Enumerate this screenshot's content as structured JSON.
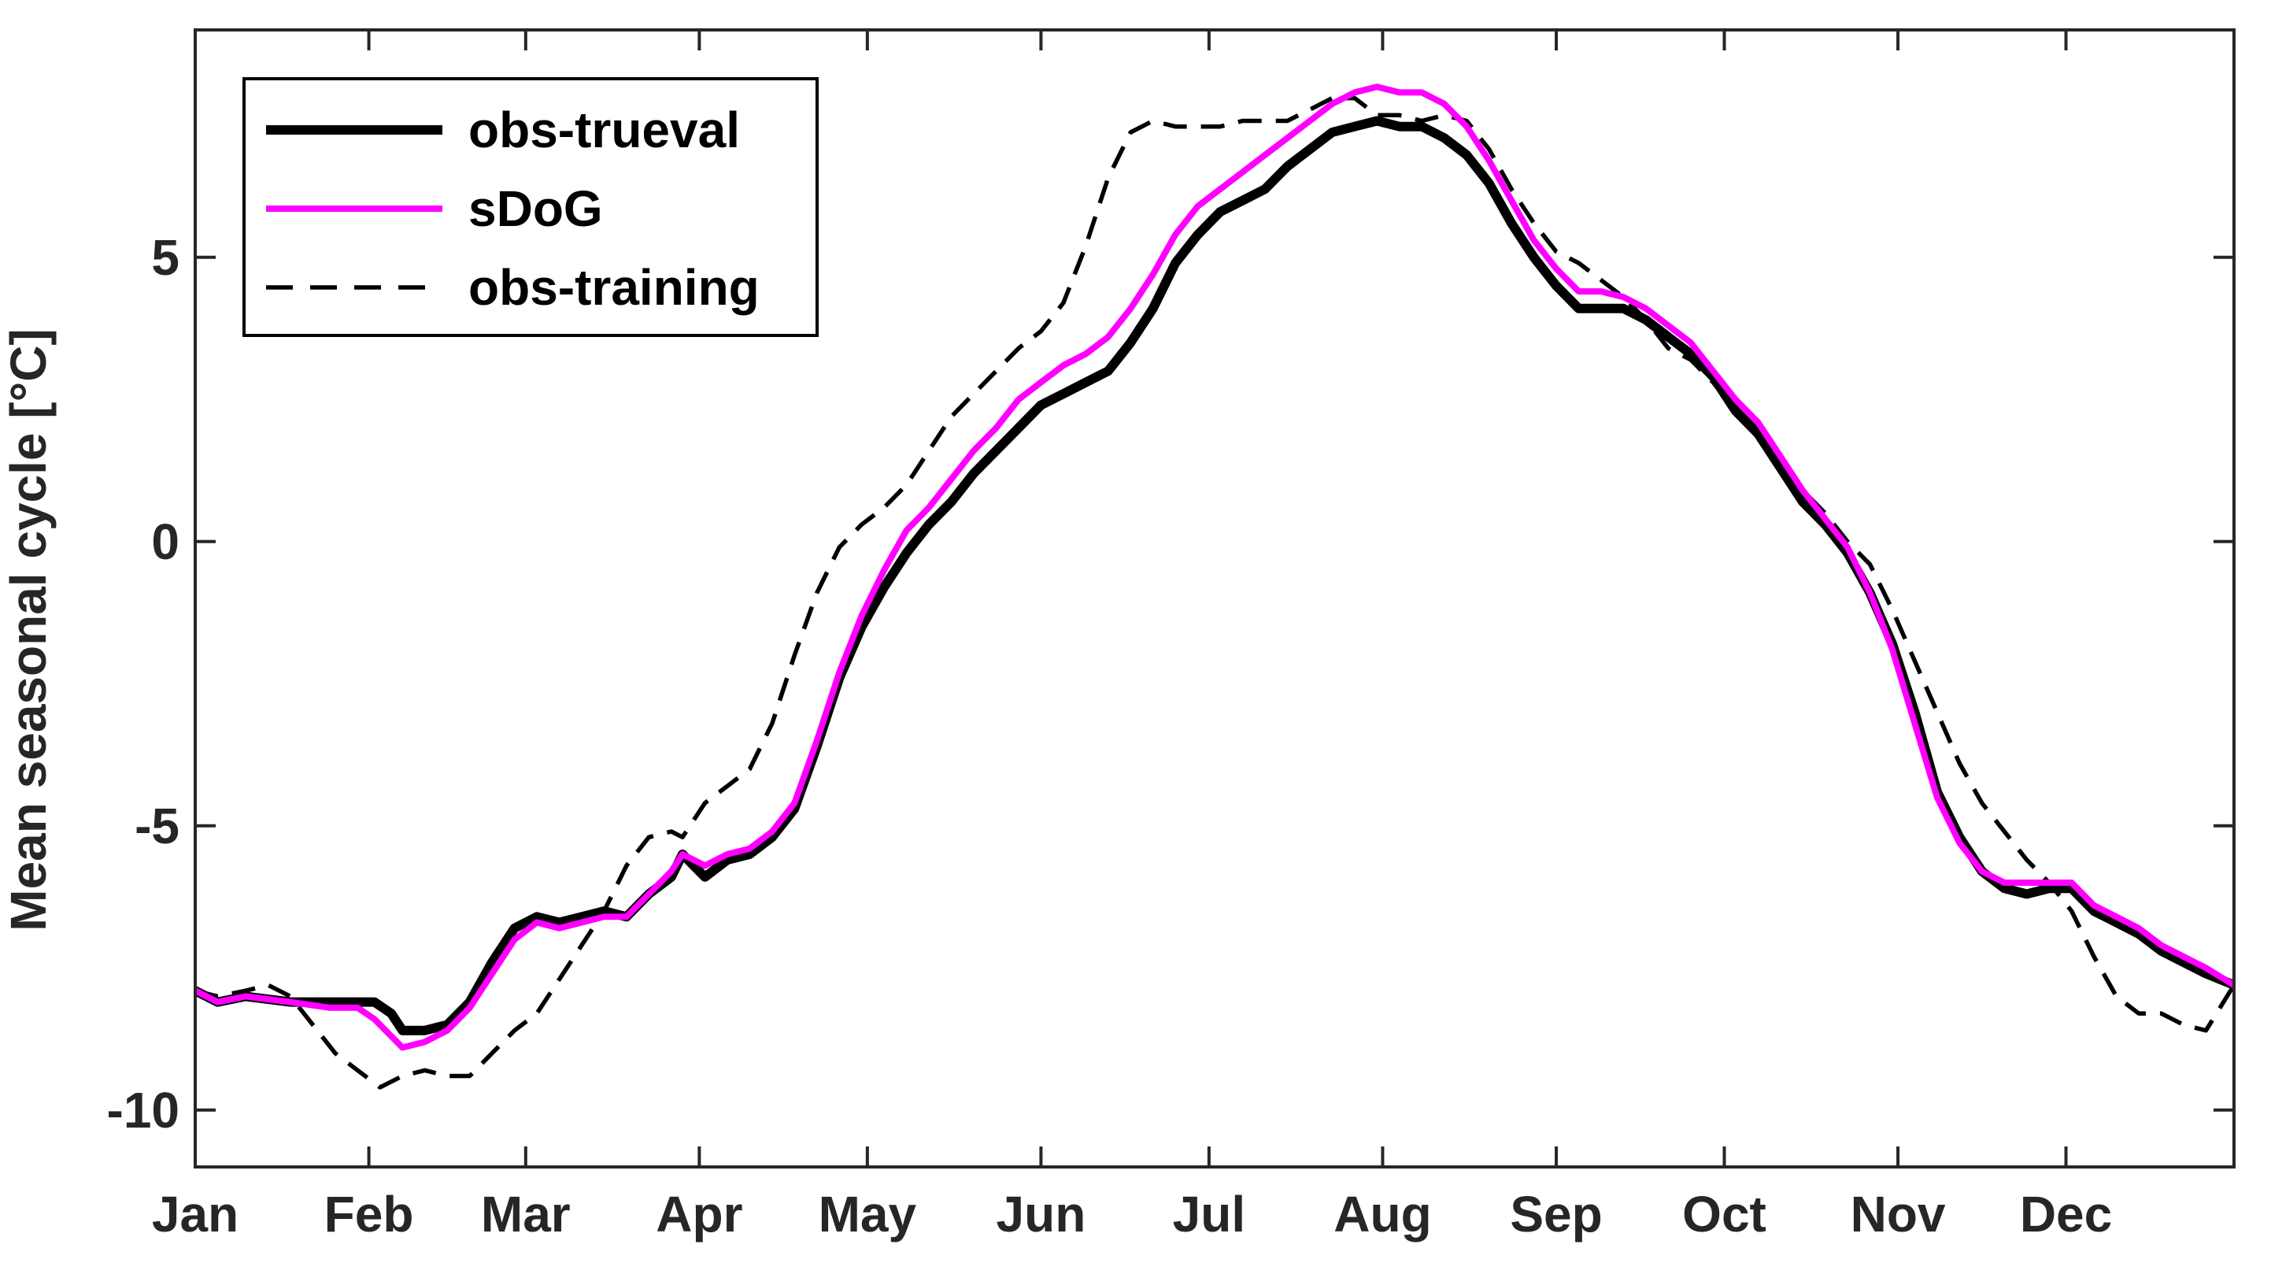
{
  "chart_data": {
    "type": "line",
    "title": "",
    "xlabel": "",
    "ylabel": "Mean seasonal cycle [°C]",
    "xlim": [
      1,
      365
    ],
    "ylim": [
      -11,
      9
    ],
    "yticks": [
      -10,
      -5,
      0,
      5
    ],
    "ytick_labels": [
      "-10",
      "-5",
      "0",
      "5"
    ],
    "grid": false,
    "legend_position": "top-left",
    "month_ticks": [
      {
        "label": "Jan",
        "day": 1
      },
      {
        "label": "Feb",
        "day": 32
      },
      {
        "label": "Mar",
        "day": 60
      },
      {
        "label": "Apr",
        "day": 91
      },
      {
        "label": "May",
        "day": 121
      },
      {
        "label": "Jun",
        "day": 152
      },
      {
        "label": "Jul",
        "day": 182
      },
      {
        "label": "Aug",
        "day": 213
      },
      {
        "label": "Sep",
        "day": 244
      },
      {
        "label": "Oct",
        "day": 274
      },
      {
        "label": "Nov",
        "day": 305
      },
      {
        "label": "Dec",
        "day": 335
      }
    ],
    "series": [
      {
        "name": "obs-trueval",
        "color": "#000000",
        "style": "solid-thick",
        "points": [
          [
            1,
            -7.9
          ],
          [
            5,
            -8.1
          ],
          [
            10,
            -8.0
          ],
          [
            18,
            -8.1
          ],
          [
            25,
            -8.1
          ],
          [
            30,
            -8.1
          ],
          [
            33,
            -8.1
          ],
          [
            36,
            -8.3
          ],
          [
            38,
            -8.6
          ],
          [
            42,
            -8.6
          ],
          [
            46,
            -8.5
          ],
          [
            50,
            -8.1
          ],
          [
            54,
            -7.4
          ],
          [
            58,
            -6.8
          ],
          [
            62,
            -6.6
          ],
          [
            66,
            -6.7
          ],
          [
            70,
            -6.6
          ],
          [
            74,
            -6.5
          ],
          [
            78,
            -6.6
          ],
          [
            82,
            -6.2
          ],
          [
            86,
            -5.9
          ],
          [
            88,
            -5.5
          ],
          [
            92,
            -5.9
          ],
          [
            96,
            -5.6
          ],
          [
            100,
            -5.5
          ],
          [
            104,
            -5.2
          ],
          [
            108,
            -4.7
          ],
          [
            112,
            -3.6
          ],
          [
            116,
            -2.4
          ],
          [
            120,
            -1.5
          ],
          [
            124,
            -0.8
          ],
          [
            128,
            -0.2
          ],
          [
            132,
            0.3
          ],
          [
            136,
            0.7
          ],
          [
            140,
            1.2
          ],
          [
            144,
            1.6
          ],
          [
            148,
            2.0
          ],
          [
            152,
            2.4
          ],
          [
            156,
            2.6
          ],
          [
            160,
            2.8
          ],
          [
            164,
            3.0
          ],
          [
            168,
            3.5
          ],
          [
            172,
            4.1
          ],
          [
            176,
            4.9
          ],
          [
            180,
            5.4
          ],
          [
            184,
            5.8
          ],
          [
            188,
            6.0
          ],
          [
            192,
            6.2
          ],
          [
            196,
            6.6
          ],
          [
            200,
            6.9
          ],
          [
            204,
            7.2
          ],
          [
            208,
            7.3
          ],
          [
            212,
            7.4
          ],
          [
            216,
            7.3
          ],
          [
            220,
            7.3
          ],
          [
            224,
            7.1
          ],
          [
            228,
            6.8
          ],
          [
            232,
            6.3
          ],
          [
            236,
            5.6
          ],
          [
            240,
            5.0
          ],
          [
            244,
            4.5
          ],
          [
            248,
            4.1
          ],
          [
            252,
            4.1
          ],
          [
            256,
            4.1
          ],
          [
            260,
            3.9
          ],
          [
            264,
            3.6
          ],
          [
            268,
            3.3
          ],
          [
            272,
            2.9
          ],
          [
            276,
            2.3
          ],
          [
            280,
            1.9
          ],
          [
            284,
            1.3
          ],
          [
            288,
            0.7
          ],
          [
            292,
            0.3
          ],
          [
            296,
            -0.2
          ],
          [
            300,
            -0.9
          ],
          [
            304,
            -1.8
          ],
          [
            308,
            -3.0
          ],
          [
            312,
            -4.4
          ],
          [
            316,
            -5.2
          ],
          [
            320,
            -5.8
          ],
          [
            324,
            -6.1
          ],
          [
            328,
            -6.2
          ],
          [
            332,
            -6.1
          ],
          [
            336,
            -6.1
          ],
          [
            340,
            -6.5
          ],
          [
            344,
            -6.7
          ],
          [
            348,
            -6.9
          ],
          [
            352,
            -7.2
          ],
          [
            356,
            -7.4
          ],
          [
            360,
            -7.6
          ],
          [
            365,
            -7.8
          ]
        ]
      },
      {
        "name": "sDoG",
        "color": "#ff00ff",
        "style": "solid",
        "points": [
          [
            1,
            -7.9
          ],
          [
            5,
            -8.1
          ],
          [
            10,
            -8.0
          ],
          [
            18,
            -8.1
          ],
          [
            25,
            -8.2
          ],
          [
            30,
            -8.2
          ],
          [
            33,
            -8.4
          ],
          [
            36,
            -8.7
          ],
          [
            38,
            -8.9
          ],
          [
            42,
            -8.8
          ],
          [
            46,
            -8.6
          ],
          [
            50,
            -8.2
          ],
          [
            54,
            -7.6
          ],
          [
            58,
            -7.0
          ],
          [
            62,
            -6.7
          ],
          [
            66,
            -6.8
          ],
          [
            70,
            -6.7
          ],
          [
            74,
            -6.6
          ],
          [
            78,
            -6.6
          ],
          [
            82,
            -6.2
          ],
          [
            86,
            -5.8
          ],
          [
            88,
            -5.5
          ],
          [
            92,
            -5.7
          ],
          [
            96,
            -5.5
          ],
          [
            100,
            -5.4
          ],
          [
            104,
            -5.1
          ],
          [
            108,
            -4.6
          ],
          [
            112,
            -3.5
          ],
          [
            116,
            -2.3
          ],
          [
            120,
            -1.3
          ],
          [
            124,
            -0.5
          ],
          [
            128,
            0.2
          ],
          [
            132,
            0.6
          ],
          [
            136,
            1.1
          ],
          [
            140,
            1.6
          ],
          [
            144,
            2.0
          ],
          [
            148,
            2.5
          ],
          [
            152,
            2.8
          ],
          [
            156,
            3.1
          ],
          [
            160,
            3.3
          ],
          [
            164,
            3.6
          ],
          [
            168,
            4.1
          ],
          [
            172,
            4.7
          ],
          [
            176,
            5.4
          ],
          [
            180,
            5.9
          ],
          [
            184,
            6.2
          ],
          [
            188,
            6.5
          ],
          [
            192,
            6.8
          ],
          [
            196,
            7.1
          ],
          [
            200,
            7.4
          ],
          [
            204,
            7.7
          ],
          [
            208,
            7.9
          ],
          [
            212,
            8.0
          ],
          [
            216,
            7.9
          ],
          [
            220,
            7.9
          ],
          [
            224,
            7.7
          ],
          [
            228,
            7.3
          ],
          [
            232,
            6.7
          ],
          [
            236,
            6.0
          ],
          [
            240,
            5.3
          ],
          [
            244,
            4.8
          ],
          [
            248,
            4.4
          ],
          [
            252,
            4.4
          ],
          [
            256,
            4.3
          ],
          [
            260,
            4.1
          ],
          [
            264,
            3.8
          ],
          [
            268,
            3.5
          ],
          [
            272,
            3.0
          ],
          [
            276,
            2.5
          ],
          [
            280,
            2.1
          ],
          [
            284,
            1.5
          ],
          [
            288,
            0.9
          ],
          [
            292,
            0.4
          ],
          [
            296,
            -0.1
          ],
          [
            300,
            -0.9
          ],
          [
            304,
            -1.9
          ],
          [
            308,
            -3.2
          ],
          [
            312,
            -4.5
          ],
          [
            316,
            -5.3
          ],
          [
            320,
            -5.8
          ],
          [
            324,
            -6.0
          ],
          [
            328,
            -6.0
          ],
          [
            332,
            -6.0
          ],
          [
            336,
            -6.0
          ],
          [
            340,
            -6.4
          ],
          [
            344,
            -6.6
          ],
          [
            348,
            -6.8
          ],
          [
            352,
            -7.1
          ],
          [
            356,
            -7.3
          ],
          [
            360,
            -7.5
          ],
          [
            365,
            -7.8
          ]
        ]
      },
      {
        "name": "obs-training",
        "color": "#000000",
        "style": "dashed",
        "points": [
          [
            1,
            -7.9
          ],
          [
            5,
            -8.0
          ],
          [
            10,
            -7.9
          ],
          [
            14,
            -7.8
          ],
          [
            18,
            -8.0
          ],
          [
            22,
            -8.5
          ],
          [
            26,
            -9.0
          ],
          [
            30,
            -9.3
          ],
          [
            34,
            -9.6
          ],
          [
            38,
            -9.4
          ],
          [
            42,
            -9.3
          ],
          [
            46,
            -9.4
          ],
          [
            50,
            -9.4
          ],
          [
            54,
            -9.0
          ],
          [
            58,
            -8.6
          ],
          [
            62,
            -8.3
          ],
          [
            66,
            -7.7
          ],
          [
            70,
            -7.1
          ],
          [
            74,
            -6.5
          ],
          [
            78,
            -5.7
          ],
          [
            82,
            -5.2
          ],
          [
            86,
            -5.1
          ],
          [
            88,
            -5.2
          ],
          [
            92,
            -4.6
          ],
          [
            96,
            -4.3
          ],
          [
            100,
            -4.0
          ],
          [
            104,
            -3.2
          ],
          [
            108,
            -2.0
          ],
          [
            112,
            -0.9
          ],
          [
            116,
            -0.1
          ],
          [
            120,
            0.3
          ],
          [
            124,
            0.6
          ],
          [
            128,
            1.0
          ],
          [
            132,
            1.6
          ],
          [
            136,
            2.2
          ],
          [
            140,
            2.6
          ],
          [
            144,
            3.0
          ],
          [
            148,
            3.4
          ],
          [
            152,
            3.7
          ],
          [
            156,
            4.2
          ],
          [
            160,
            5.2
          ],
          [
            164,
            6.4
          ],
          [
            168,
            7.2
          ],
          [
            172,
            7.4
          ],
          [
            176,
            7.3
          ],
          [
            180,
            7.3
          ],
          [
            184,
            7.3
          ],
          [
            188,
            7.4
          ],
          [
            192,
            7.4
          ],
          [
            196,
            7.4
          ],
          [
            200,
            7.6
          ],
          [
            204,
            7.8
          ],
          [
            208,
            7.8
          ],
          [
            212,
            7.5
          ],
          [
            216,
            7.5
          ],
          [
            220,
            7.4
          ],
          [
            224,
            7.5
          ],
          [
            228,
            7.4
          ],
          [
            232,
            6.9
          ],
          [
            236,
            6.2
          ],
          [
            240,
            5.6
          ],
          [
            244,
            5.1
          ],
          [
            248,
            4.9
          ],
          [
            252,
            4.6
          ],
          [
            256,
            4.3
          ],
          [
            260,
            3.9
          ],
          [
            264,
            3.4
          ],
          [
            268,
            3.2
          ],
          [
            272,
            2.8
          ],
          [
            276,
            2.3
          ],
          [
            280,
            1.9
          ],
          [
            284,
            1.4
          ],
          [
            288,
            0.9
          ],
          [
            292,
            0.5
          ],
          [
            296,
            0.0
          ],
          [
            300,
            -0.4
          ],
          [
            304,
            -1.2
          ],
          [
            308,
            -2.1
          ],
          [
            312,
            -3.0
          ],
          [
            316,
            -3.9
          ],
          [
            320,
            -4.6
          ],
          [
            324,
            -5.1
          ],
          [
            328,
            -5.6
          ],
          [
            332,
            -6.0
          ],
          [
            336,
            -6.5
          ],
          [
            340,
            -7.3
          ],
          [
            344,
            -8.0
          ],
          [
            348,
            -8.3
          ],
          [
            352,
            -8.3
          ],
          [
            356,
            -8.5
          ],
          [
            360,
            -8.6
          ],
          [
            365,
            -7.8
          ]
        ]
      }
    ]
  }
}
